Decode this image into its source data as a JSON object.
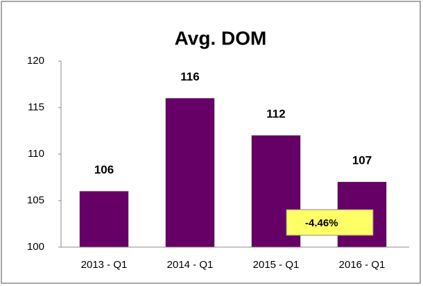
{
  "chart_data": {
    "type": "bar",
    "title": "Avg. DOM",
    "categories": [
      "2013 - Q1",
      "2014 - Q1",
      "2015 - Q1",
      "2016 - Q1"
    ],
    "values": [
      106,
      116,
      112,
      107
    ],
    "color": "#660066",
    "ylim": [
      100,
      120
    ],
    "yticks": [
      100,
      105,
      110,
      115,
      120
    ],
    "annotation": "-4.46%",
    "annotation_color": "#ffff66"
  }
}
